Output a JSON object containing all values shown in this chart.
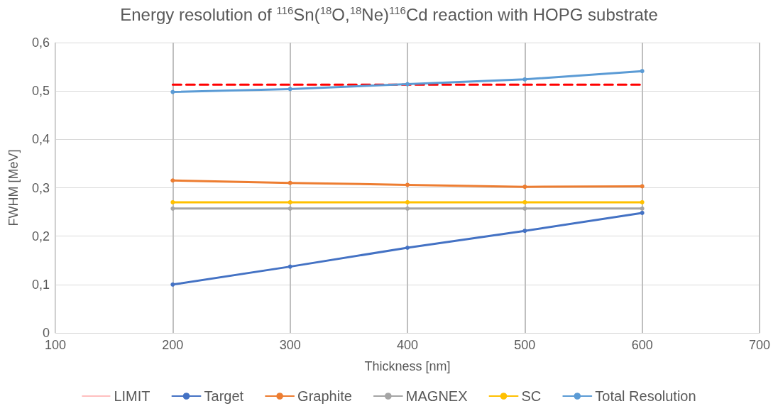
{
  "chart_data": {
    "type": "line",
    "title": "Energy resolution of $^{116}$Sn($^{18}$O,$^{18}$Ne)$^{116}$Cd reaction with HOPG substrate",
    "xlabel": "Thickness [nm]",
    "ylabel": "FWHM [MeV]",
    "x": [
      200,
      300,
      400,
      500,
      600
    ],
    "series": [
      {
        "name": "LIMIT",
        "color": "#ff0000",
        "values": [
          0.513,
          0.513,
          0.513,
          0.513,
          0.513
        ],
        "line_style": "dashed",
        "marker": "none"
      },
      {
        "name": "Target",
        "color": "#4472c4",
        "values": [
          0.1,
          0.137,
          0.176,
          0.211,
          0.248
        ]
      },
      {
        "name": "Graphite",
        "color": "#ed7d31",
        "values": [
          0.315,
          0.31,
          0.306,
          0.302,
          0.303
        ]
      },
      {
        "name": "MAGNEX",
        "color": "#a5a5a5",
        "values": [
          0.257,
          0.257,
          0.257,
          0.257,
          0.257
        ]
      },
      {
        "name": "SC",
        "color": "#ffc000",
        "values": [
          0.27,
          0.27,
          0.27,
          0.27,
          0.27
        ]
      },
      {
        "name": "Total Resolution",
        "color": "#5b9bd5",
        "values": [
          0.498,
          0.504,
          0.514,
          0.524,
          0.541
        ]
      }
    ],
    "xlim": [
      100,
      700
    ],
    "xticks": [
      100,
      200,
      300,
      400,
      500,
      600,
      700
    ],
    "ylim": [
      0,
      0.6
    ],
    "yticks": [
      0,
      {
        "value": 0.1,
        "label": "0,1"
      },
      {
        "value": 0.2,
        "label": "0,2"
      },
      {
        "value": 0.3,
        "label": "0,3"
      },
      {
        "value": 0.4,
        "label": "0,4"
      },
      {
        "value": 0.5,
        "label": "0,5"
      },
      {
        "value": 0.6,
        "label": "0,6"
      }
    ],
    "grid": true,
    "legend": "bottom",
    "marker": "circle",
    "line_style": "solid"
  }
}
